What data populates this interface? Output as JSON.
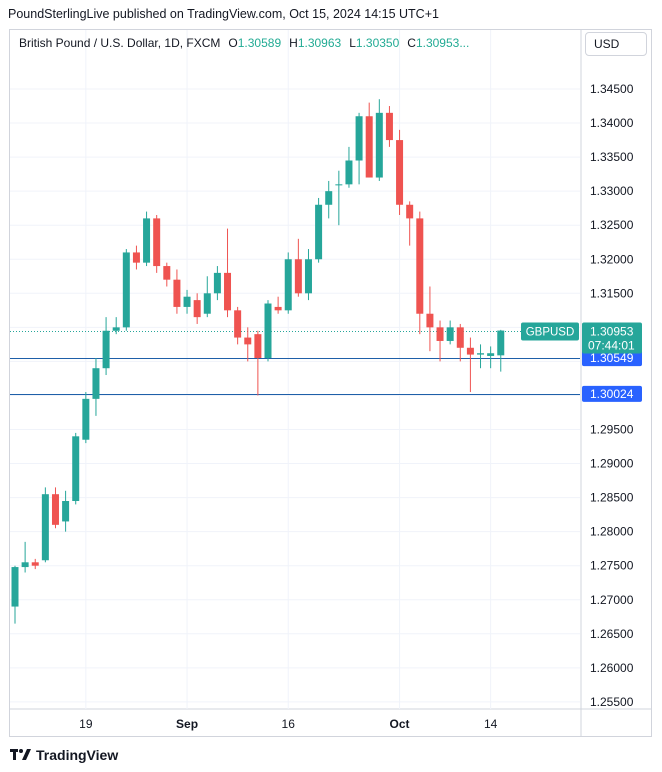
{
  "header": {
    "publisher": "PoundSterlingLive published on TradingView.com, Oct 15, 2024 14:15 UTC+1"
  },
  "legend": {
    "symbol": "British Pound / U.S. Dollar, 1D, FXCM",
    "o_label": "O",
    "o_value": "1.30589",
    "h_label": "H",
    "h_value": "1.30963",
    "l_label": "L",
    "l_value": "1.30350",
    "c_label": "C",
    "c_value": "1.30953..."
  },
  "currency_button": "USD",
  "footer": {
    "brand": "TradingView"
  },
  "colors": {
    "up": "#26a69a",
    "down": "#ef5350",
    "level_line": "#1e5fa8",
    "price_tag": "#2962ff",
    "last_price_tag": "#26a69a"
  },
  "chart_data": {
    "type": "candlestick",
    "symbol": "GBPUSD",
    "ylim": [
      1.25,
      1.35
    ],
    "y_ticks": [
      "1.25500",
      "1.26000",
      "1.26500",
      "1.27000",
      "1.27500",
      "1.28000",
      "1.28500",
      "1.29000",
      "1.29500",
      "1.30000",
      "1.30500",
      "1.31000",
      "1.31500",
      "1.32000",
      "1.32500",
      "1.33000",
      "1.33500",
      "1.34000",
      "1.34500"
    ],
    "x_ticks": [
      {
        "label": "19",
        "index": 7
      },
      {
        "label": "Sep",
        "index": 17
      },
      {
        "label": "16",
        "index": 27
      },
      {
        "label": "Oct",
        "index": 38
      },
      {
        "label": "14",
        "index": 47
      }
    ],
    "last_price": {
      "label": "GBPUSD",
      "value": "1.30953",
      "countdown": "07:44:01"
    },
    "levels": [
      {
        "value": 1.30549,
        "label": "1.30549"
      },
      {
        "value": 1.30024,
        "label": "1.30024"
      }
    ],
    "candles": [
      [
        1.269,
        1.275,
        1.2665,
        1.2748
      ],
      [
        1.2748,
        1.2785,
        1.274,
        1.2755
      ],
      [
        1.2755,
        1.276,
        1.2745,
        1.275
      ],
      [
        1.2758,
        1.2865,
        1.2755,
        1.2855
      ],
      [
        1.2855,
        1.2865,
        1.2805,
        1.281
      ],
      [
        1.2815,
        1.286,
        1.28,
        1.2845
      ],
      [
        1.2845,
        1.2945,
        1.284,
        1.294
      ],
      [
        1.2935,
        1.3005,
        1.293,
        1.2995
      ],
      [
        1.2995,
        1.3055,
        1.297,
        1.304
      ],
      [
        1.304,
        1.3115,
        1.303,
        1.3095
      ],
      [
        1.3095,
        1.3115,
        1.309,
        1.31
      ],
      [
        1.31,
        1.3215,
        1.3095,
        1.321
      ],
      [
        1.321,
        1.322,
        1.3185,
        1.3195
      ],
      [
        1.3195,
        1.327,
        1.319,
        1.326
      ],
      [
        1.326,
        1.3265,
        1.318,
        1.319
      ],
      [
        1.319,
        1.3195,
        1.316,
        1.317
      ],
      [
        1.317,
        1.3185,
        1.312,
        1.313
      ],
      [
        1.313,
        1.3155,
        1.312,
        1.3145
      ],
      [
        1.314,
        1.315,
        1.3105,
        1.3115
      ],
      [
        1.312,
        1.3175,
        1.3115,
        1.315
      ],
      [
        1.315,
        1.319,
        1.314,
        1.318
      ],
      [
        1.318,
        1.3245,
        1.3115,
        1.3125
      ],
      [
        1.3125,
        1.313,
        1.3075,
        1.3085
      ],
      [
        1.3085,
        1.31,
        1.305,
        1.3075
      ],
      [
        1.309,
        1.3095,
        1.3,
        1.3055
      ],
      [
        1.3055,
        1.314,
        1.305,
        1.3135
      ],
      [
        1.313,
        1.3145,
        1.312,
        1.3125
      ],
      [
        1.3125,
        1.321,
        1.312,
        1.32
      ],
      [
        1.32,
        1.323,
        1.3145,
        1.315
      ],
      [
        1.315,
        1.3215,
        1.314,
        1.32
      ],
      [
        1.32,
        1.329,
        1.3195,
        1.328
      ],
      [
        1.328,
        1.3315,
        1.326,
        1.33
      ],
      [
        1.331,
        1.333,
        1.325,
        1.331
      ],
      [
        1.331,
        1.3365,
        1.3305,
        1.3345
      ],
      [
        1.3345,
        1.3415,
        1.331,
        1.341
      ],
      [
        1.341,
        1.343,
        1.332,
        1.332
      ],
      [
        1.332,
        1.3435,
        1.3315,
        1.3415
      ],
      [
        1.3415,
        1.3425,
        1.3365,
        1.3375
      ],
      [
        1.3375,
        1.339,
        1.3265,
        1.328
      ],
      [
        1.328,
        1.3285,
        1.322,
        1.326
      ],
      [
        1.326,
        1.327,
        1.309,
        1.312
      ],
      [
        1.312,
        1.316,
        1.3065,
        1.31
      ],
      [
        1.31,
        1.311,
        1.305,
        1.308
      ],
      [
        1.308,
        1.311,
        1.3075,
        1.31
      ],
      [
        1.31,
        1.3105,
        1.305,
        1.307
      ],
      [
        1.307,
        1.3085,
        1.3005,
        1.306
      ],
      [
        1.306,
        1.3075,
        1.304,
        1.3062
      ],
      [
        1.3058,
        1.3072,
        1.304,
        1.3062
      ],
      [
        1.30589,
        1.30963,
        1.3035,
        1.30953
      ]
    ]
  }
}
